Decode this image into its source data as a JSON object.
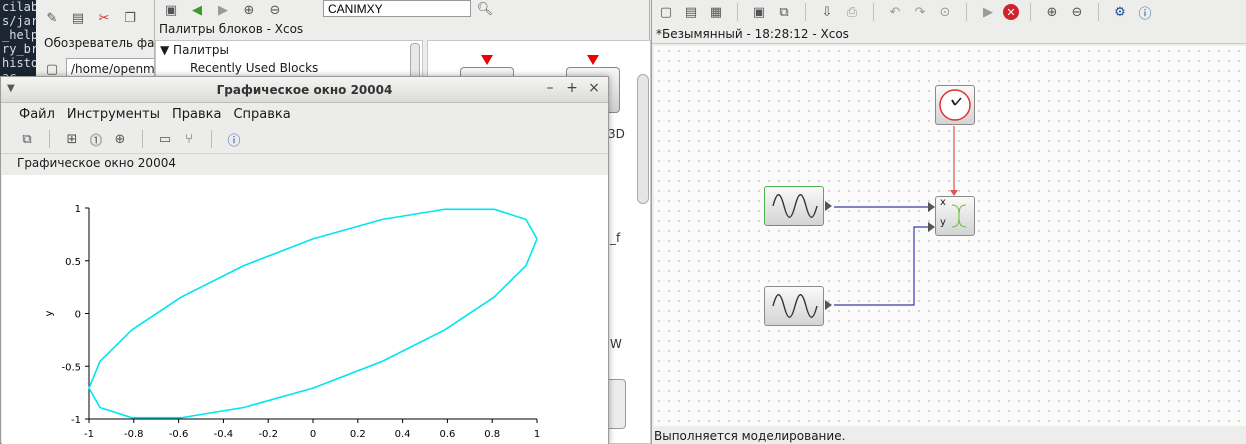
{
  "terminal": {
    "lines": [
      "cilab",
      "s/jar",
      "_help",
      "ry_br",
      "histo",
      "ac",
      "/",
      "s",
      "",
      "",
      "",
      "",
      "",
      "",
      "",
      "",
      "",
      "",
      "es"
    ]
  },
  "browser": {
    "title": "Обозреватель файлов",
    "path": "/home/openmodelica"
  },
  "palette": {
    "search_value": "CANIMXY",
    "title": "Палитры блоков - Xcos",
    "tree_root": "Палитры",
    "tree_item": "Recently Used Blocks",
    "fragments": [
      "3D",
      "_f",
      "W"
    ]
  },
  "graphic": {
    "window_title": "Графическое окно 20004",
    "menu": [
      "Файл",
      "Инструменты",
      "Правка",
      "Справка"
    ],
    "subtitle": "Графическое окно 20004",
    "controls": {
      "minimize": "–",
      "maximize": "+",
      "close": "×"
    }
  },
  "chart_data": {
    "type": "line",
    "title": "",
    "xlabel": "",
    "ylabel": "y",
    "xlim": [
      -1,
      1
    ],
    "ylim": [
      -1,
      1
    ],
    "xticks": [
      "-1",
      "-0.8",
      "-0.6",
      "-0.4",
      "-0.2",
      "0",
      "0.2",
      "0.4",
      "0.6",
      "0.8",
      "1"
    ],
    "yticks": [
      "1",
      "0.5",
      "0",
      "-0.5",
      "-1"
    ],
    "grid": false,
    "series": [
      {
        "color": "#00e5ee",
        "x": [
          1.0,
          0.951,
          0.809,
          0.588,
          0.309,
          0.0,
          -0.309,
          -0.588,
          -0.809,
          -0.951,
          -1.0,
          -0.951,
          -0.809,
          -0.588,
          -0.309,
          0.0,
          0.309,
          0.588,
          0.809,
          0.951,
          1.0
        ],
        "y": [
          0.707,
          0.891,
          0.988,
          0.988,
          0.891,
          0.707,
          0.454,
          0.156,
          -0.156,
          -0.454,
          -0.707,
          -0.891,
          -0.988,
          -0.988,
          -0.891,
          -0.707,
          -0.454,
          -0.156,
          0.156,
          0.454,
          0.707
        ]
      }
    ]
  },
  "xcos": {
    "title": "*Безымянный - 18:28:12 - Xcos",
    "status": "Выполняется моделирование.",
    "port_x": "x",
    "port_y": "y"
  },
  "colors": {
    "curve": "#00e5ee",
    "event_link": "#e05050",
    "data_link": "#3b3ba8",
    "selection": "#4caf50"
  }
}
